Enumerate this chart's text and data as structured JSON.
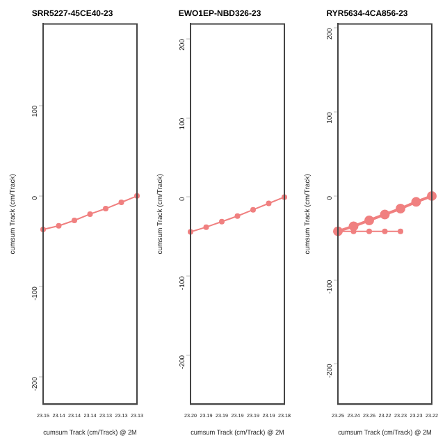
{
  "chart_data": [
    {
      "type": "line",
      "title": "SRR5227-45CE40-23",
      "xlabel": "cumsum Track (cm/Track) @ 2M",
      "ylabel": "cumsum Track (cm/Track)",
      "categories": [
        "23.15",
        "23.14",
        "23.14",
        "23.14",
        "23.13",
        "23.13",
        "23.13"
      ],
      "series": [
        {
          "color": "#f08080",
          "values": [
            -37,
            -33,
            -27,
            -20,
            -14,
            -7,
            0
          ]
        }
      ],
      "ylim": [
        -230,
        190
      ],
      "yticks": [
        -200,
        -100,
        0,
        100
      ],
      "grid": false,
      "legend": false,
      "marker": "circle",
      "line_style": "solid"
    },
    {
      "type": "line",
      "title": "EWO1EP-NBD326-23",
      "xlabel": "cumsum Track (cm/Track) @ 2M",
      "ylabel": "cumsum Track (cm/Track)",
      "categories": [
        "23.20",
        "23.19",
        "23.19",
        "23.19",
        "23.19",
        "23.19",
        "23.18"
      ],
      "series": [
        {
          "color": "#f08080",
          "values": [
            -44,
            -38,
            -31,
            -24,
            -16,
            -8,
            0
          ]
        }
      ],
      "ylim": [
        -262,
        219
      ],
      "yticks": [
        -200,
        -100,
        0,
        100,
        200
      ],
      "grid": false,
      "legend": false,
      "marker": "circle",
      "line_style": "solid"
    },
    {
      "type": "line",
      "title": "RYR5634-4CA856-23",
      "xlabel": "cumsum Track (cm/Track) @ 2M",
      "ylabel": "cumsum Track (cm/Track)",
      "categories": [
        "23.25",
        "23.24",
        "23.26",
        "23.22",
        "23.23",
        "23.23",
        "23.22"
      ],
      "series": [
        {
          "color": "#f08080",
          "values": [
            -42,
            -36,
            -29,
            -22,
            -15,
            -7,
            0
          ]
        },
        {
          "color": "#f08080",
          "values": [
            -42,
            -42,
            -42,
            -42,
            -42,
            null,
            null
          ]
        }
      ],
      "ylim": [
        -248,
        205
      ],
      "yticks": [
        -200,
        -100,
        0,
        100,
        200
      ],
      "grid": false,
      "legend": false,
      "marker": "circle",
      "line_style": "solid"
    }
  ]
}
